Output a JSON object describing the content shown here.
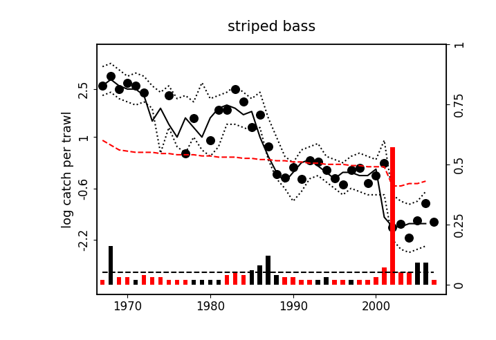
{
  "chart_data": {
    "type": "line",
    "title": "striped bass",
    "y_label": "log catch per trawl",
    "x": [
      1967,
      1968,
      1969,
      1970,
      1971,
      1972,
      1973,
      1974,
      1975,
      1976,
      1977,
      1978,
      1979,
      1980,
      1981,
      1982,
      1983,
      1984,
      1985,
      1986,
      1987,
      1988,
      1989,
      1990,
      1991,
      1992,
      1993,
      1994,
      1995,
      1996,
      1997,
      1998,
      1999,
      2000,
      2001,
      2002,
      2003,
      2004,
      2005,
      2006,
      2007
    ],
    "xlim": [
      1966.3,
      2008.5
    ],
    "xticks": [
      1970,
      1980,
      1990,
      2000
    ],
    "ylim": [
      -3.9,
      3.9
    ],
    "yticks": [
      2.5,
      1,
      -0.6,
      -2.2
    ],
    "y2lim": [
      -0.04,
      1.0
    ],
    "y2ticks": [
      0,
      0.25,
      0.5,
      0.75,
      1
    ],
    "series": [
      {
        "type": "scatter",
        "color": "#000000",
        "marker": "circle",
        "values": [
          2.6,
          2.9,
          2.5,
          2.7,
          2.6,
          2.4,
          null,
          null,
          2.3,
          null,
          0.5,
          1.6,
          null,
          0.9,
          1.85,
          1.85,
          2.5,
          2.1,
          1.3,
          1.7,
          0.7,
          -0.15,
          -0.26,
          0.07,
          -0.3,
          0.28,
          0.24,
          -0.02,
          -0.28,
          -0.47,
          -0.02,
          0.04,
          -0.43,
          -0.2,
          0.19,
          -1.81,
          -1.7,
          -2.13,
          -1.6,
          -1.06,
          -1.64
        ]
      },
      {
        "type": "line",
        "color": "#000000",
        "line_style": "solid",
        "values": [
          2.6,
          2.8,
          2.6,
          2.5,
          2.5,
          2.3,
          1.5,
          1.9,
          1.4,
          1.0,
          1.6,
          1.3,
          1.0,
          1.6,
          1.9,
          2.0,
          1.9,
          1.7,
          1.8,
          1.0,
          0.4,
          -0.1,
          -0.4,
          -0.1,
          0.2,
          0.3,
          0.1,
          -0.1,
          -0.3,
          -0.1,
          -0.1,
          -0.2,
          -0.2,
          0.0,
          -1.5,
          -1.8,
          -1.8,
          -1.7,
          -1.7,
          -1.7,
          null
        ]
      },
      {
        "type": "line",
        "color": "#000000",
        "line_style": "dotted",
        "values": [
          3.2,
          3.3,
          3.1,
          2.9,
          3.0,
          2.9,
          2.6,
          2.4,
          2.6,
          2.2,
          2.3,
          2.1,
          2.7,
          2.2,
          2.3,
          2.4,
          2.6,
          2.4,
          2.2,
          2.4,
          1.6,
          1.0,
          0.4,
          0.2,
          0.6,
          0.7,
          0.8,
          0.4,
          0.3,
          0.2,
          0.4,
          0.5,
          0.4,
          0.3,
          0.9,
          -0.8,
          -1.0,
          -1.1,
          -1.0,
          -0.7,
          null
        ]
      },
      {
        "type": "line",
        "color": "#000000",
        "line_style": "dotted",
        "values": [
          2.3,
          2.4,
          2.2,
          2.1,
          2.0,
          2.1,
          1.9,
          0.5,
          1.3,
          0.7,
          0.5,
          1.0,
          0.6,
          0.4,
          0.7,
          1.4,
          1.4,
          1.3,
          1.2,
          1.3,
          0.3,
          -0.3,
          -0.6,
          -1.0,
          -0.7,
          -0.3,
          -0.2,
          -0.4,
          -0.6,
          -0.8,
          -0.6,
          -0.7,
          -0.8,
          -0.8,
          -0.8,
          -2.2,
          -2.5,
          -2.6,
          -2.5,
          -2.4,
          null
        ]
      },
      {
        "type": "line",
        "color": "#ff0000",
        "line_style": "dashed",
        "axis": "y2",
        "values": [
          0.6,
          0.58,
          0.56,
          0.555,
          0.55,
          0.55,
          0.55,
          0.545,
          0.545,
          0.54,
          0.54,
          0.54,
          0.535,
          0.535,
          0.53,
          0.53,
          0.53,
          0.525,
          0.525,
          0.52,
          0.52,
          0.515,
          0.515,
          0.51,
          0.51,
          0.505,
          0.505,
          0.5,
          0.5,
          0.5,
          0.495,
          0.495,
          0.49,
          0.49,
          0.49,
          0.41,
          0.41,
          0.42,
          0.42,
          0.43,
          null
        ]
      },
      {
        "type": "bar",
        "axis": "y2",
        "colors": [
          "#ff0000",
          "#000000",
          "#ff0000",
          "#ff0000",
          "#000000",
          "#ff0000",
          "#ff0000",
          "#ff0000",
          "#ff0000",
          "#ff0000",
          "#ff0000",
          "#000000",
          "#000000",
          "#000000",
          "#000000",
          "#ff0000",
          "#ff0000",
          "#ff0000",
          "#000000",
          "#000000",
          "#000000",
          "#000000",
          "#ff0000",
          "#ff0000",
          "#ff0000",
          "#ff0000",
          "#000000",
          "#000000",
          "#ff0000",
          "#ff0000",
          "#000000",
          "#ff0000",
          "#ff0000",
          "#ff0000",
          "#ff0000",
          "#ff0000",
          "#ff0000",
          "#ff0000",
          "#000000",
          "#000000",
          "#ff0000"
        ],
        "values": [
          0.02,
          0.16,
          0.03,
          0.03,
          0.02,
          0.04,
          0.03,
          0.03,
          0.02,
          0.02,
          0.02,
          0.02,
          0.02,
          0.02,
          0.02,
          0.04,
          0.05,
          0.04,
          0.06,
          0.08,
          0.12,
          0.04,
          0.03,
          0.03,
          0.02,
          0.02,
          0.02,
          0.03,
          0.02,
          0.02,
          0.02,
          0.02,
          0.02,
          0.03,
          0.07,
          0.57,
          0.05,
          0.05,
          0.09,
          0.09,
          0.02
        ]
      },
      {
        "type": "line",
        "color": "#000000",
        "line_style": "dashed",
        "axis": "y2",
        "values": [
          0.05,
          0.05,
          0.05,
          0.05,
          0.05,
          0.05,
          0.05,
          0.05,
          0.05,
          0.05,
          0.05,
          0.05,
          0.05,
          0.05,
          0.05,
          0.05,
          0.05,
          0.05,
          0.05,
          0.05,
          0.05,
          0.05,
          0.05,
          0.05,
          0.05,
          0.05,
          0.05,
          0.05,
          0.05,
          0.05,
          0.05,
          0.05,
          0.05,
          0.05,
          0.05,
          0.05,
          0.05,
          0.05,
          0.05,
          0.05,
          0.05
        ]
      }
    ]
  }
}
